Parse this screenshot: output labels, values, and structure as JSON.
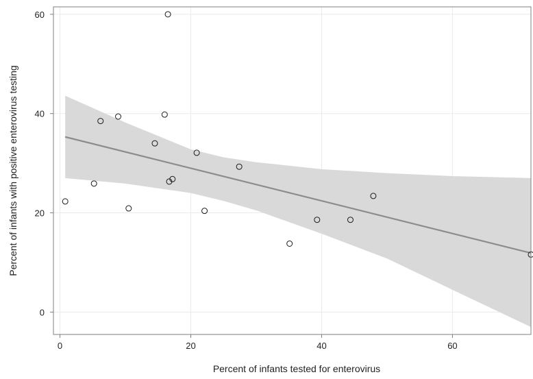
{
  "chart_data": {
    "type": "scatter",
    "xlabel": "Percent of infants tested for enterovirus",
    "ylabel": "Percent of infants with positive enterovirus testing",
    "xlim": [
      -1,
      72
    ],
    "ylim": [
      -4.5,
      61.5
    ],
    "xticks": [
      0,
      20,
      40,
      60
    ],
    "yticks": [
      0,
      20,
      40,
      60
    ],
    "grid": true,
    "points": [
      {
        "x": 0.8,
        "y": 22.3
      },
      {
        "x": 5.2,
        "y": 25.9
      },
      {
        "x": 6.2,
        "y": 38.5
      },
      {
        "x": 8.9,
        "y": 39.4
      },
      {
        "x": 10.5,
        "y": 20.9
      },
      {
        "x": 14.5,
        "y": 34.0
      },
      {
        "x": 16.0,
        "y": 39.8
      },
      {
        "x": 16.5,
        "y": 60.0
      },
      {
        "x": 16.7,
        "y": 26.3
      },
      {
        "x": 17.2,
        "y": 26.8
      },
      {
        "x": 20.9,
        "y": 32.1
      },
      {
        "x": 22.1,
        "y": 20.4
      },
      {
        "x": 27.4,
        "y": 29.3
      },
      {
        "x": 35.1,
        "y": 13.8
      },
      {
        "x": 39.3,
        "y": 18.6
      },
      {
        "x": 44.4,
        "y": 18.6
      },
      {
        "x": 47.9,
        "y": 23.4
      },
      {
        "x": 72.0,
        "y": 11.6
      }
    ],
    "fit_line": [
      {
        "x": 0.8,
        "y": 35.3
      },
      {
        "x": 72.0,
        "y": 11.9
      }
    ],
    "confidence_band": [
      {
        "x": 0.8,
        "lower": 27.0,
        "upper": 43.6
      },
      {
        "x": 10.0,
        "lower": 25.9,
        "upper": 38.2
      },
      {
        "x": 20.0,
        "lower": 24.0,
        "upper": 32.8
      },
      {
        "x": 25.0,
        "lower": 22.4,
        "upper": 31.2
      },
      {
        "x": 30.0,
        "lower": 20.5,
        "upper": 30.2
      },
      {
        "x": 40.0,
        "lower": 15.8,
        "upper": 28.8
      },
      {
        "x": 50.0,
        "lower": 10.8,
        "upper": 28.0
      },
      {
        "x": 60.0,
        "lower": 4.5,
        "upper": 27.4
      },
      {
        "x": 72.0,
        "lower": -3.0,
        "upper": 27.0
      }
    ],
    "colors": {
      "band": "#d9d9d9",
      "line": "#8c8c8c",
      "marker_stroke": "#1a1a1a",
      "grid": "#eaeaea",
      "axis": "#7f7f7f"
    }
  }
}
